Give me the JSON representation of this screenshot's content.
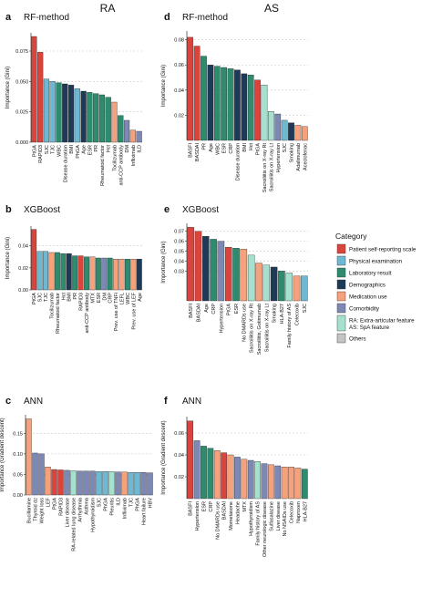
{
  "columns": [
    {
      "title": "RA"
    },
    {
      "title": "AS"
    }
  ],
  "colors": {
    "self": "#d9453c",
    "phys": "#6fb8d2",
    "lab": "#2e8b6e",
    "demo": "#1f3a56",
    "med": "#f4a17c",
    "comor": "#7e88b4",
    "extra": "#a6e0cf",
    "others": "#c4c4c4"
  },
  "legend": {
    "title": "Category",
    "items": [
      {
        "key": "self",
        "label": "Patient self-reporting scale"
      },
      {
        "key": "phys",
        "label": "Physical examination"
      },
      {
        "key": "lab",
        "label": "Laboratory result"
      },
      {
        "key": "demo",
        "label": "Demographics"
      },
      {
        "key": "med",
        "label": "Medication use"
      },
      {
        "key": "comor",
        "label": "Comorbidity"
      },
      {
        "key": "extra",
        "label": "RA: Extra-articular feature",
        "label2": "AS: SpA feature"
      },
      {
        "key": "others",
        "label": "Others"
      }
    ]
  },
  "chart_data": [
    {
      "panel": "a",
      "title": "RF-method",
      "type": "bar",
      "ylabel": "Importance (Gini)",
      "ylim": [
        0,
        0.09
      ],
      "yticks": [
        0.0,
        0.025,
        0.05,
        0.075
      ],
      "ytick_labels": [
        "0.000",
        "0.025",
        "0.050",
        "0.075"
      ],
      "grid": true,
      "categories": [
        "PtGA",
        "RAPID3",
        "SJC",
        "TJC",
        "WBC",
        "Disease duration",
        "BMI",
        "PhGA",
        "Age",
        "ESR",
        "PR",
        "Rheumatoid factor",
        "Hct",
        "Tocilizumab",
        "anti-CCP antibody",
        "DM",
        "Infliximab",
        "ILD"
      ],
      "values": [
        0.087,
        0.074,
        0.052,
        0.05,
        0.049,
        0.048,
        0.047,
        0.044,
        0.042,
        0.041,
        0.04,
        0.039,
        0.037,
        0.033,
        0.022,
        0.018,
        0.01,
        0.009
      ],
      "groups": [
        "self",
        "self",
        "phys",
        "phys",
        "lab",
        "demo",
        "demo",
        "phys",
        "demo",
        "lab",
        "lab",
        "lab",
        "lab",
        "med",
        "lab",
        "comor",
        "med",
        "comor"
      ]
    },
    {
      "panel": "b",
      "title": "XGBoost",
      "type": "bar",
      "ylabel": "Importance (Gini)",
      "ylim": [
        0,
        0.058
      ],
      "yticks": [
        0.0,
        0.02,
        0.04
      ],
      "ytick_labels": [
        "0.00",
        "0.02",
        "0.04"
      ],
      "grid": true,
      "categories": [
        "PtGA",
        "SJC",
        "TJC",
        "Tocilizumab",
        "Rheumatoid factor",
        "Hct",
        "BMI",
        "PR",
        "RAPID3",
        "anti-CCP antibody",
        "MTX",
        "ESR",
        "DM",
        "CRP",
        "Prev. use of TNFi",
        "LEFL",
        "WBC",
        "Prev. use of LEF",
        "Age"
      ],
      "values": [
        0.055,
        0.035,
        0.035,
        0.034,
        0.034,
        0.033,
        0.033,
        0.031,
        0.031,
        0.03,
        0.03,
        0.029,
        0.029,
        0.029,
        0.028,
        0.028,
        0.028,
        0.028,
        0.028
      ],
      "groups": [
        "self",
        "phys",
        "phys",
        "med",
        "lab",
        "lab",
        "demo",
        "lab",
        "self",
        "lab",
        "med",
        "lab",
        "comor",
        "lab",
        "med",
        "med",
        "lab",
        "med",
        "demo"
      ]
    },
    {
      "panel": "c",
      "title": "ANN",
      "type": "bar",
      "ylabel": "Importance (Gradient descent)",
      "ylim": [
        0,
        0.195
      ],
      "yticks": [
        0.0,
        0.05,
        0.1,
        0.15
      ],
      "ytick_labels": [
        "0.00",
        "0.05",
        "0.10",
        "0.15"
      ],
      "grid": true,
      "categories": [
        "Bucillamine",
        "Thyroid dz",
        "Weight loss",
        "LEF",
        "PtGA",
        "RAPID3",
        "Liver disease",
        "RA-related lung disease",
        "Arrhythmia",
        "Asthma",
        "Hypothyroidism",
        "SJC",
        "PhGA",
        "Pleuritis",
        "ILD",
        "Infliximab",
        "TJC",
        "PhGA",
        "Heart failure",
        "HBV"
      ],
      "values": [
        0.185,
        0.102,
        0.1,
        0.068,
        0.062,
        0.061,
        0.06,
        0.059,
        0.058,
        0.058,
        0.058,
        0.057,
        0.057,
        0.057,
        0.056,
        0.056,
        0.055,
        0.055,
        0.055,
        0.054
      ],
      "groups": [
        "med",
        "comor",
        "comor",
        "med",
        "self",
        "self",
        "comor",
        "extra",
        "comor",
        "comor",
        "comor",
        "phys",
        "phys",
        "extra",
        "comor",
        "med",
        "phys",
        "phys",
        "comor",
        "comor"
      ]
    },
    {
      "panel": "d",
      "title": "RF-method",
      "type": "bar",
      "ylabel": "Importance (Gini)",
      "ylim": [
        0,
        0.087
      ],
      "yticks": [
        0.02,
        0.04,
        0.06,
        0.08
      ],
      "ytick_labels": [
        "0.02",
        "0.04",
        "0.06",
        "0.08"
      ],
      "grid": true,
      "categories": [
        "BASFI",
        "BASDAI",
        "PR",
        "Age",
        "WBC",
        "ESR",
        "CRP",
        "Disease duration",
        "BMI",
        "Hct",
        "PtGA",
        "Sacroiliitis on X-ray Rt",
        "Sacroiliitis on X-ray Lt",
        "Hypertension",
        "SJC",
        "Smoking",
        "Adalimumab",
        "Aceclofenac"
      ],
      "values": [
        0.082,
        0.075,
        0.067,
        0.06,
        0.059,
        0.058,
        0.057,
        0.056,
        0.053,
        0.052,
        0.048,
        0.044,
        0.023,
        0.021,
        0.016,
        0.014,
        0.012,
        0.011
      ],
      "groups": [
        "self",
        "self",
        "lab",
        "demo",
        "lab",
        "lab",
        "lab",
        "demo",
        "demo",
        "lab",
        "self",
        "extra",
        "extra",
        "comor",
        "phys",
        "demo",
        "med",
        "med"
      ]
    },
    {
      "panel": "e",
      "title": "XGBoost",
      "type": "bar",
      "ylabel": "Importance (Gini)",
      "ylim": [
        0,
        0.078
      ],
      "yticks": [
        0.03,
        0.04,
        0.05,
        0.06,
        0.07
      ],
      "ytick_labels": [
        "0.03",
        "0.04",
        "0.05",
        "0.06",
        "0.07"
      ],
      "grid": true,
      "categories": [
        "BASFI",
        "BASDAI",
        "Age",
        "CRP",
        "Hypertension",
        "PtGA",
        "ESR",
        "No DMARDs use",
        "Sacroiliitis on X-ray Rt",
        "Sacroiliitis, Gotimumab",
        "Sacroiliitis on X-ray Lt",
        "Smoking",
        "HLA-B27",
        "Family history of AS",
        "Celecoxib",
        "SJC"
      ],
      "values": [
        0.074,
        0.07,
        0.065,
        0.062,
        0.06,
        0.054,
        0.053,
        0.052,
        0.046,
        0.038,
        0.036,
        0.034,
        0.03,
        0.028,
        0.025,
        0.025
      ],
      "groups": [
        "self",
        "self",
        "demo",
        "lab",
        "comor",
        "self",
        "lab",
        "med",
        "extra",
        "med",
        "extra",
        "demo",
        "lab",
        "extra",
        "med",
        "phys"
      ]
    },
    {
      "panel": "f",
      "title": "ANN",
      "type": "bar",
      "ylabel": "Importance (Gradient descent)",
      "ylim": [
        0,
        0.075
      ],
      "yticks": [
        0.02,
        0.04,
        0.06
      ],
      "ytick_labels": [
        "0.02",
        "0.04",
        "0.06"
      ],
      "grid": true,
      "categories": [
        "BASFI",
        "Hypertension",
        "ESR",
        "CRP",
        "No DMARDs use",
        "BASDAI",
        "Mometasone",
        "Headache",
        "MTX",
        "Hypothyroidism",
        "Family history of AS",
        "Other neurologic disease",
        "Sulfasalazine",
        "Liver disease",
        "No NSAIDs use",
        "Celecoxib",
        "Naproxen",
        "HLA-B27"
      ],
      "values": [
        0.071,
        0.053,
        0.048,
        0.046,
        0.044,
        0.042,
        0.04,
        0.038,
        0.036,
        0.035,
        0.034,
        0.032,
        0.031,
        0.03,
        0.029,
        0.029,
        0.028,
        0.027
      ],
      "groups": [
        "self",
        "comor",
        "lab",
        "lab",
        "med",
        "self",
        "med",
        "comor",
        "med",
        "comor",
        "extra",
        "comor",
        "med",
        "comor",
        "med",
        "med",
        "med",
        "lab"
      ]
    }
  ]
}
